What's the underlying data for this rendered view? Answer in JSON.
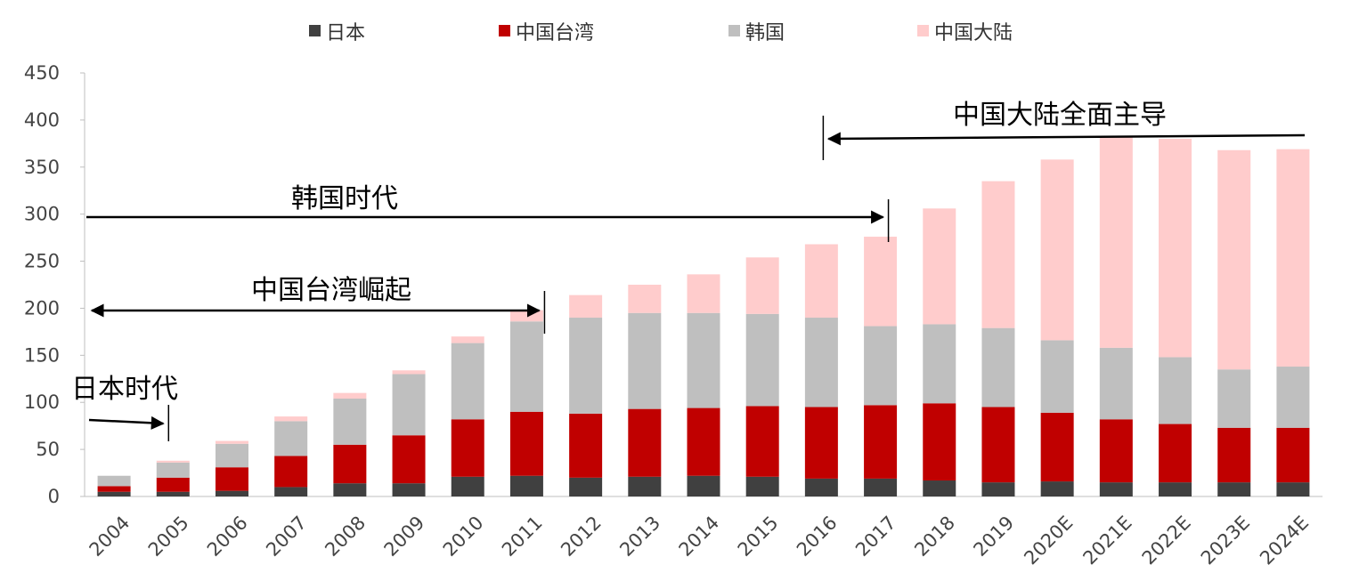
{
  "chart_data": {
    "type": "bar",
    "stacked": true,
    "categories": [
      "2004",
      "2005",
      "2006",
      "2007",
      "2008",
      "2009",
      "2010",
      "2011",
      "2012",
      "2013",
      "2014",
      "2015",
      "2016",
      "2017",
      "2018",
      "2019",
      "2020E",
      "2021E",
      "2022E",
      "2023E",
      "2024E"
    ],
    "series": [
      {
        "name": "日本",
        "color": "#404040",
        "values": [
          5,
          5,
          6,
          10,
          14,
          14,
          21,
          22,
          20,
          21,
          22,
          21,
          19,
          19,
          17,
          15,
          16,
          15,
          15,
          15,
          15
        ]
      },
      {
        "name": "中国台湾",
        "color": "#c00000",
        "values": [
          6,
          15,
          25,
          33,
          41,
          51,
          61,
          68,
          68,
          72,
          72,
          75,
          76,
          78,
          82,
          80,
          73,
          67,
          62,
          58,
          58
        ]
      },
      {
        "name": "韩国",
        "color": "#bfbfbf",
        "values": [
          11,
          16,
          25,
          37,
          49,
          65,
          81,
          96,
          102,
          102,
          101,
          98,
          95,
          84,
          84,
          84,
          77,
          76,
          71,
          62,
          65
        ]
      },
      {
        "name": "中国大陆",
        "color": "#ffcccc",
        "values": [
          0,
          2,
          3,
          5,
          6,
          4,
          7,
          12,
          24,
          30,
          41,
          60,
          78,
          95,
          123,
          156,
          192,
          224,
          232,
          233,
          231
        ]
      }
    ],
    "ylim": [
      0,
      450
    ],
    "yticks": [
      0,
      50,
      100,
      150,
      200,
      250,
      300,
      350,
      400,
      450
    ],
    "legend_position": "top",
    "grid": false,
    "annotations": [
      {
        "text": "日本时代",
        "from": "2004",
        "to": "2005"
      },
      {
        "text": "中国台湾崛起",
        "from": "2004",
        "to": "2011"
      },
      {
        "text": "韩国时代",
        "from": "2004",
        "to": "2017"
      },
      {
        "text": "中国大陆全面主导",
        "from": "2024E",
        "to": "2016"
      }
    ]
  }
}
